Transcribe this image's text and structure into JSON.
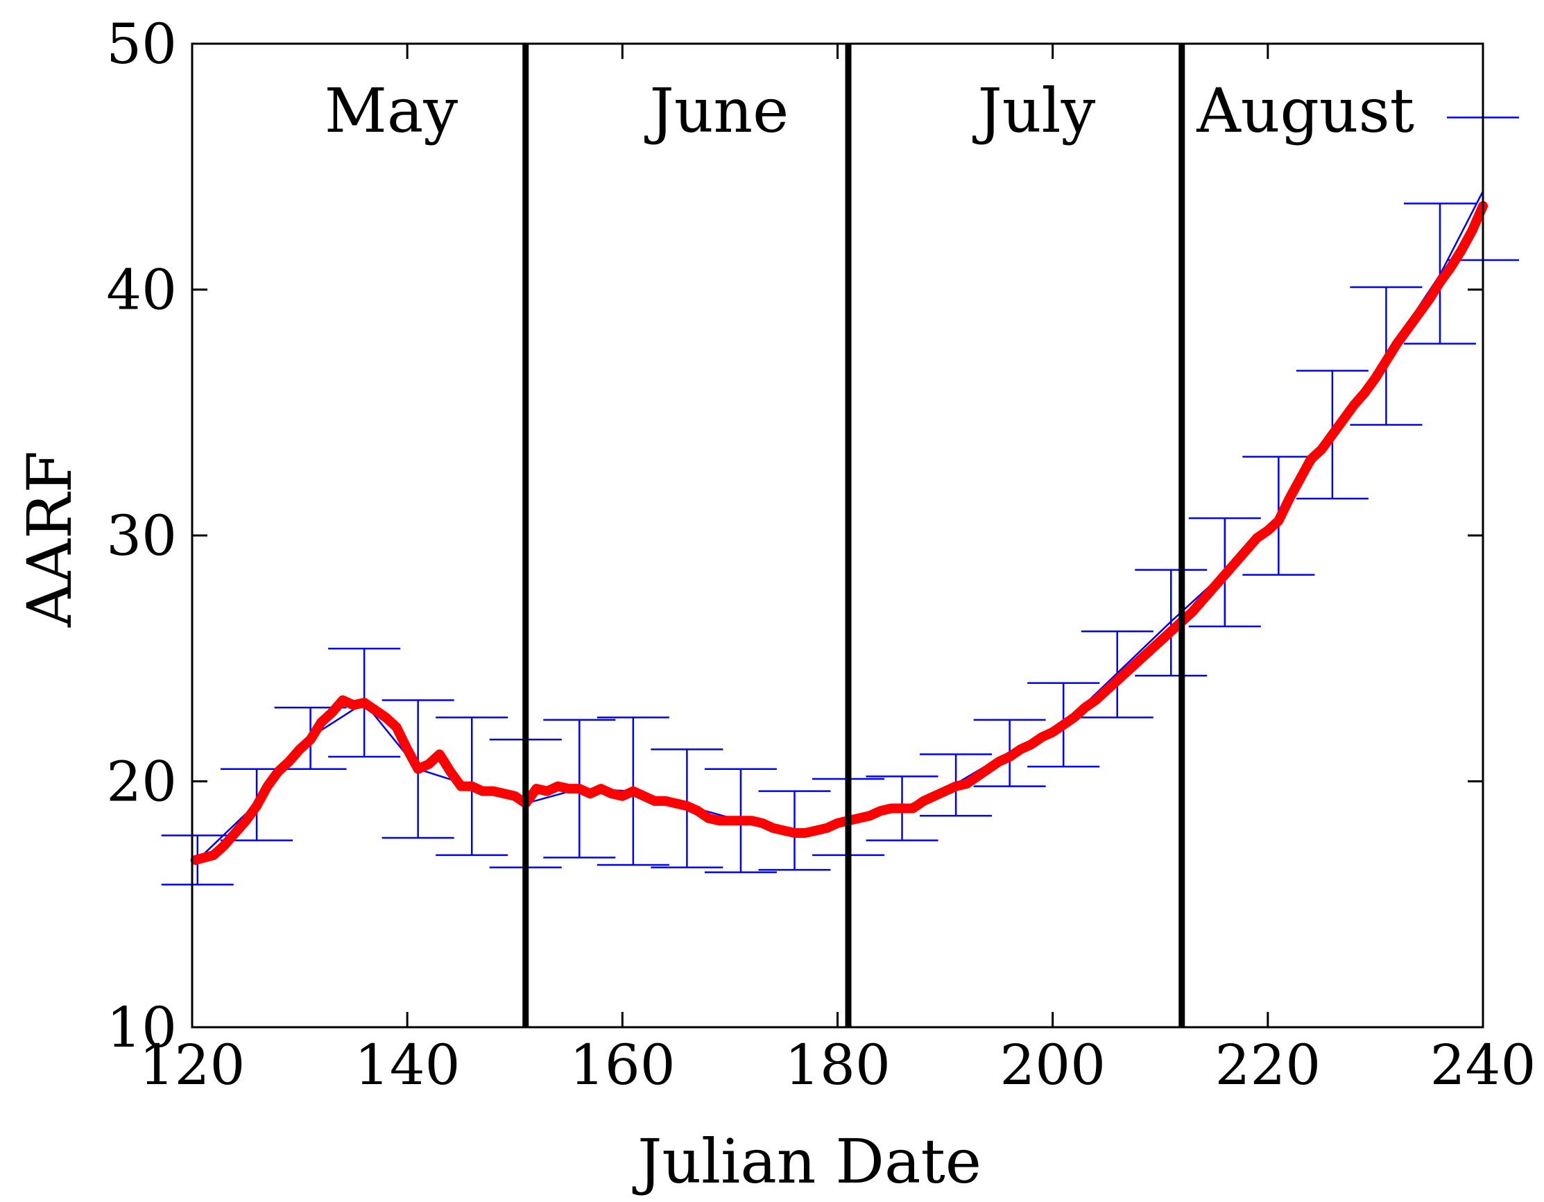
{
  "chart_data": {
    "type": "line",
    "xlabel": "Julian Date",
    "ylabel": "AARF",
    "xlim": [
      120,
      240
    ],
    "ylim": [
      10,
      50
    ],
    "x_ticks": [
      120,
      140,
      160,
      180,
      200,
      220,
      240
    ],
    "y_ticks": [
      10,
      20,
      30,
      40,
      50
    ],
    "x_tick_labels": [
      "120",
      "140",
      "160",
      "180",
      "200",
      "220",
      "240"
    ],
    "y_tick_labels": [
      "10",
      "20",
      "30",
      "40",
      "50"
    ],
    "grid": false,
    "month_boundaries": [
      151,
      181,
      212
    ],
    "month_labels": [
      {
        "text": "May",
        "x": 138.5
      },
      {
        "text": "June",
        "x": 169.0
      },
      {
        "text": "July",
        "x": 198.5
      },
      {
        "text": "August",
        "x": 223.5
      }
    ],
    "series": [
      {
        "color": "#0000ff",
        "style": "errorbar",
        "x": [
          120.5,
          126,
          131,
          136,
          141,
          146,
          151,
          156,
          161,
          166,
          171,
          176,
          181,
          186,
          191,
          196,
          201,
          206,
          211,
          216,
          221,
          226,
          231,
          236,
          240
        ],
        "y": [
          16.8,
          19.1,
          21.8,
          23.2,
          20.5,
          19.8,
          19.1,
          19.7,
          19.6,
          19.0,
          18.4,
          17.9,
          18.5,
          18.9,
          19.9,
          21.2,
          22.3,
          24.4,
          26.5,
          28.5,
          30.8,
          34.1,
          37.3,
          40.6,
          44.0
        ],
        "lower": [
          15.8,
          17.6,
          20.5,
          21.0,
          17.7,
          17.0,
          16.5,
          16.9,
          16.6,
          16.5,
          16.3,
          16.4,
          17.0,
          17.6,
          18.6,
          19.8,
          20.6,
          22.6,
          24.3,
          26.3,
          28.4,
          31.5,
          34.5,
          37.8,
          41.2
        ],
        "upper": [
          17.8,
          20.5,
          23.0,
          25.4,
          23.3,
          22.6,
          21.7,
          22.5,
          22.6,
          21.3,
          20.5,
          19.6,
          20.1,
          20.2,
          21.1,
          22.5,
          24.0,
          26.1,
          28.6,
          30.7,
          33.2,
          36.7,
          40.1,
          43.5,
          47.0
        ]
      },
      {
        "color": "#ff0000",
        "style": "line",
        "x": [
          120.3,
          122,
          123,
          124,
          125,
          126,
          127,
          128,
          129,
          130,
          131,
          132,
          133,
          134,
          135,
          136,
          137,
          138,
          139,
          140,
          141,
          142,
          143,
          144,
          145,
          146,
          147,
          148,
          149,
          150,
          151,
          152,
          153,
          154,
          155,
          156,
          157,
          158,
          159,
          160,
          161,
          162,
          163,
          164,
          165,
          166,
          167,
          168,
          169,
          170,
          171,
          172,
          173,
          174,
          175,
          176,
          177,
          178,
          179,
          180,
          181,
          182,
          183,
          184,
          185,
          186,
          187,
          188,
          189,
          190,
          191,
          192,
          193,
          194,
          195,
          196,
          197,
          198,
          199,
          200,
          201,
          202,
          203,
          204,
          205,
          206,
          207,
          208,
          209,
          210,
          211,
          212,
          213,
          214,
          215,
          216,
          217,
          218,
          219,
          220,
          221,
          222,
          223,
          224,
          225,
          226,
          227,
          228,
          229,
          230,
          231,
          232,
          233,
          234,
          235,
          236,
          237,
          238,
          239,
          240
        ],
        "y": [
          16.8,
          17.0,
          17.4,
          17.9,
          18.4,
          19.0,
          19.8,
          20.4,
          20.8,
          21.3,
          21.7,
          22.4,
          22.8,
          23.3,
          23.1,
          23.2,
          22.9,
          22.6,
          22.2,
          21.3,
          20.5,
          20.7,
          21.1,
          20.4,
          19.8,
          19.8,
          19.6,
          19.6,
          19.5,
          19.4,
          19.1,
          19.7,
          19.6,
          19.8,
          19.7,
          19.7,
          19.5,
          19.7,
          19.5,
          19.4,
          19.6,
          19.4,
          19.2,
          19.2,
          19.1,
          19.0,
          18.8,
          18.5,
          18.4,
          18.4,
          18.4,
          18.4,
          18.3,
          18.1,
          18.0,
          17.9,
          17.9,
          18.0,
          18.1,
          18.3,
          18.4,
          18.5,
          18.6,
          18.8,
          18.9,
          18.9,
          18.9,
          19.2,
          19.4,
          19.6,
          19.8,
          19.9,
          20.2,
          20.5,
          20.8,
          21.0,
          21.3,
          21.5,
          21.8,
          22.0,
          22.3,
          22.6,
          23.0,
          23.3,
          23.7,
          24.1,
          24.5,
          24.9,
          25.3,
          25.7,
          26.1,
          26.5,
          26.9,
          27.4,
          27.9,
          28.4,
          28.9,
          29.4,
          29.9,
          30.2,
          30.6,
          31.5,
          32.3,
          33.1,
          33.5,
          34.1,
          34.7,
          35.3,
          35.8,
          36.4,
          37.1,
          37.8,
          38.4,
          39.0,
          39.6,
          40.3,
          40.9,
          41.6,
          42.4,
          43.4
        ]
      }
    ]
  }
}
